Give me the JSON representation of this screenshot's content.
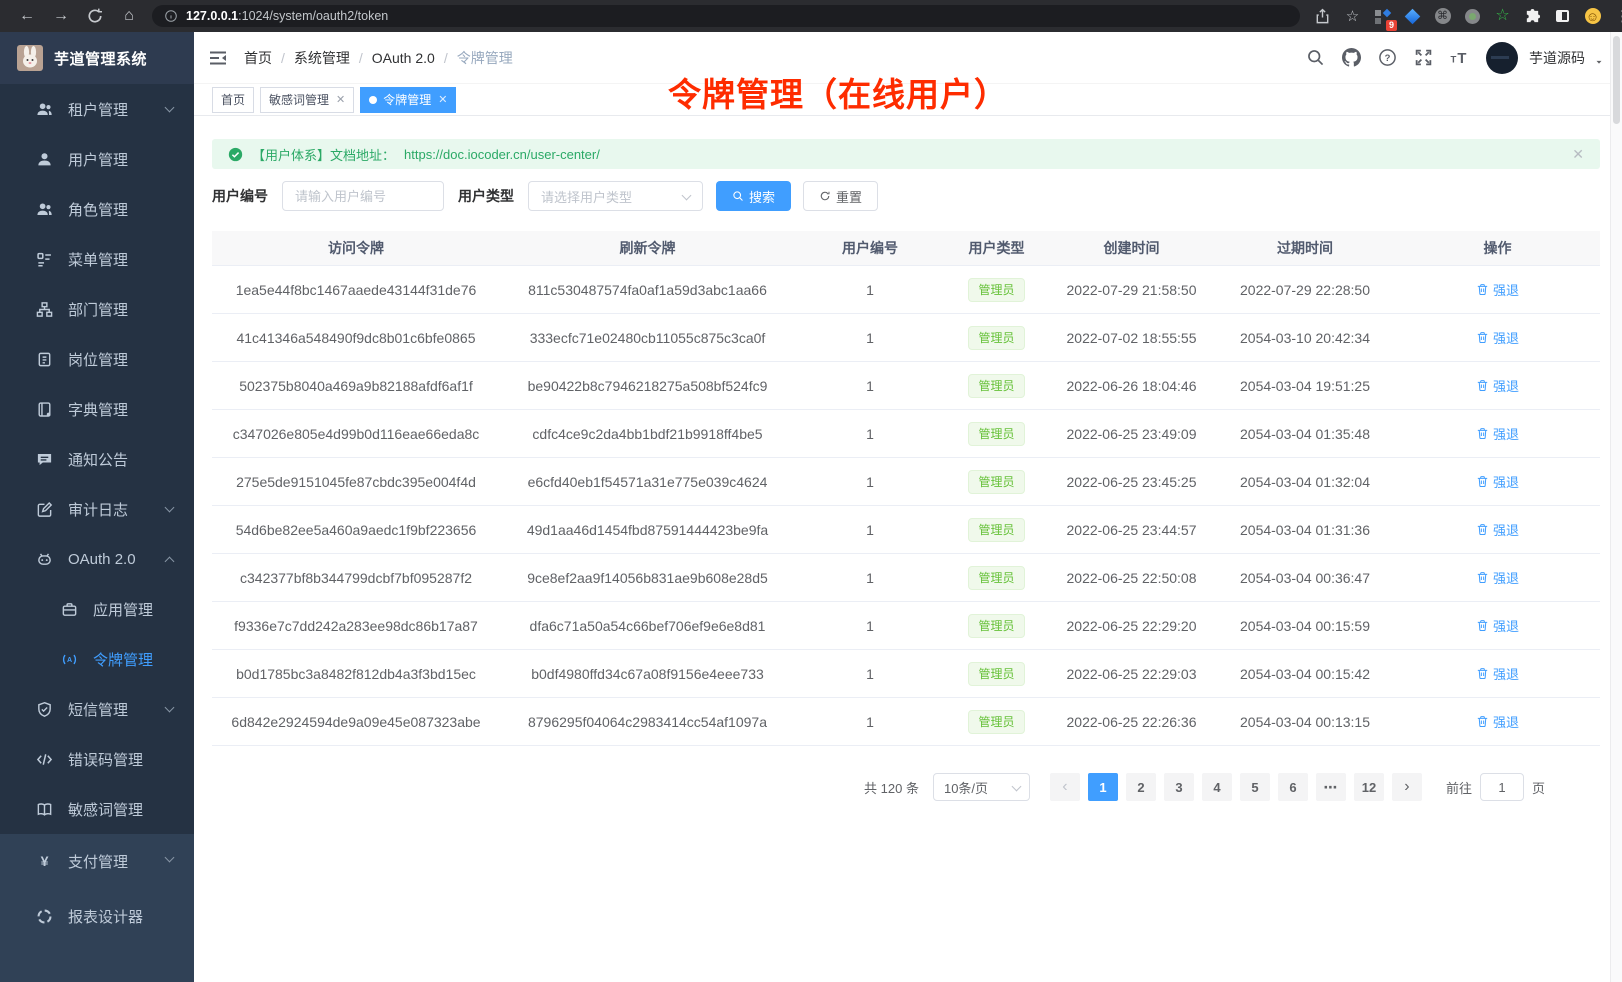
{
  "colors": {
    "primary": "#409eff",
    "success": "#67c23a",
    "alert_green": "#2ba966",
    "annotation_red": "#fe2c00",
    "sidebar_bg": "#304156",
    "sidebar_submenu_bg": "#253243",
    "active_tab_bg": "#409eff"
  },
  "browser": {
    "nav_icons": [
      "back-icon",
      "forward-icon",
      "reload-icon",
      "home-icon"
    ],
    "url_info_icon": "info-icon",
    "url_host": "127.0.0.1",
    "url_path": ":1024/system/oauth2/token",
    "toolbar_icons": [
      "share-icon",
      "bookmark-star-icon",
      "extensions-grid-icon",
      "gem-extension-icon",
      "command-extension-icon",
      "recorder-extension-icon",
      "star-extension-icon",
      "puzzle-extensions-icon",
      "side-panel-icon",
      "smiley-profile-icon",
      "kebab-menu-icon"
    ],
    "extension_badge": "9"
  },
  "app": {
    "logo_title": "芋道管理系统",
    "user_name": "芋道源码"
  },
  "header": {
    "breadcrumb": [
      "首页",
      "系统管理",
      "OAuth 2.0",
      "令牌管理"
    ],
    "right_icons": [
      "search-icon",
      "github-icon",
      "help-icon",
      "fullscreen-icon",
      "font-size-icon"
    ]
  },
  "tags": [
    {
      "label": "首页",
      "closable": false,
      "active": false
    },
    {
      "label": "敏感词管理",
      "closable": true,
      "active": false
    },
    {
      "label": "令牌管理",
      "closable": true,
      "active": true
    }
  ],
  "annotation": "令牌管理（在线用户）",
  "sidebar": {
    "sections": {
      "submenu": [
        {
          "label": "租户管理",
          "icon": "tenant-users-icon",
          "chevron": "down"
        },
        {
          "label": "用户管理",
          "icon": "user-icon"
        },
        {
          "label": "角色管理",
          "icon": "roles-icon"
        },
        {
          "label": "菜单管理",
          "icon": "menu-tree-icon"
        },
        {
          "label": "部门管理",
          "icon": "org-tree-icon"
        },
        {
          "label": "岗位管理",
          "icon": "post-badge-icon"
        },
        {
          "label": "字典管理",
          "icon": "dictionary-icon"
        },
        {
          "label": "通知公告",
          "icon": "notice-icon"
        },
        {
          "label": "审计日志",
          "icon": "audit-log-icon",
          "chevron": "down"
        },
        {
          "label": "OAuth 2.0",
          "icon": "oauth-robot-icon",
          "chevron": "up"
        },
        {
          "label": "应用管理",
          "icon": "app-briefcase-icon",
          "child": true
        },
        {
          "label": "令牌管理",
          "icon": "token-signal-icon",
          "child": true,
          "active": true
        },
        {
          "label": "短信管理",
          "icon": "sms-shield-icon",
          "chevron": "down"
        },
        {
          "label": "错误码管理",
          "icon": "errcode-icon"
        },
        {
          "label": "敏感词管理",
          "icon": "sensitive-word-icon"
        }
      ],
      "base": [
        {
          "label": "支付管理",
          "icon": "pay-yen-icon",
          "chevron": "down"
        },
        {
          "label": "报表设计器",
          "icon": "report-designer-icon"
        }
      ]
    }
  },
  "alert": {
    "text": "【用户体系】文档地址：",
    "link": "https://doc.iocoder.cn/user-center/"
  },
  "filters": {
    "user_id_label": "用户编号",
    "user_id_placeholder": "请输入用户编号",
    "user_type_label": "用户类型",
    "user_type_placeholder": "请选择用户类型",
    "search_label": "搜索",
    "reset_label": "重置"
  },
  "table": {
    "columns": [
      "访问令牌",
      "刷新令牌",
      "用户编号",
      "用户类型",
      "创建时间",
      "过期时间",
      "操作"
    ],
    "user_type_tag": "管理员",
    "action_label": "强退",
    "rows": [
      {
        "access": "1ea5e44f8bc1467aaede43144f31de76",
        "refresh": "811c530487574fa0af1a59d3abc1aa66",
        "user_id": "1",
        "created": "2022-07-29 21:58:50",
        "expires": "2022-07-29 22:28:50"
      },
      {
        "access": "41c41346a548490f9dc8b01c6bfe0865",
        "refresh": "333ecfc71e02480cb11055c875c3ca0f",
        "user_id": "1",
        "created": "2022-07-02 18:55:55",
        "expires": "2054-03-10 20:42:34"
      },
      {
        "access": "502375b8040a469a9b82188afdf6af1f",
        "refresh": "be90422b8c7946218275a508bf524fc9",
        "user_id": "1",
        "created": "2022-06-26 18:04:46",
        "expires": "2054-03-04 19:51:25"
      },
      {
        "access": "c347026e805e4d99b0d116eae66eda8c",
        "refresh": "cdfc4ce9c2da4bb1bdf21b9918ff4be5",
        "user_id": "1",
        "created": "2022-06-25 23:49:09",
        "expires": "2054-03-04 01:35:48"
      },
      {
        "access": "275e5de9151045fe87cbdc395e004f4d",
        "refresh": "e6cfd40eb1f54571a31e775e039c4624",
        "user_id": "1",
        "created": "2022-06-25 23:45:25",
        "expires": "2054-03-04 01:32:04"
      },
      {
        "access": "54d6be82ee5a460a9aedc1f9bf223656",
        "refresh": "49d1aa46d1454fbd87591444423be9fa",
        "user_id": "1",
        "created": "2022-06-25 23:44:57",
        "expires": "2054-03-04 01:31:36"
      },
      {
        "access": "c342377bf8b344799dcbf7bf095287f2",
        "refresh": "9ce8ef2aa9f14056b831ae9b608e28d5",
        "user_id": "1",
        "created": "2022-06-25 22:50:08",
        "expires": "2054-03-04 00:36:47"
      },
      {
        "access": "f9336e7c7dd242a283ee98dc86b17a87",
        "refresh": "dfa6c71a50a54c66bef706ef9e6e8d81",
        "user_id": "1",
        "created": "2022-06-25 22:29:20",
        "expires": "2054-03-04 00:15:59"
      },
      {
        "access": "b0d1785bc3a8482f812db4a3f3bd15ec",
        "refresh": "b0df4980ffd34c67a08f9156e4eee733",
        "user_id": "1",
        "created": "2022-06-25 22:29:03",
        "expires": "2054-03-04 00:15:42"
      },
      {
        "access": "6d842e2924594de9a09e45e087323abe",
        "refresh": "8796295f04064c2983414cc54af1097a",
        "user_id": "1",
        "created": "2022-06-25 22:26:36",
        "expires": "2054-03-04 00:13:15"
      }
    ]
  },
  "pagination": {
    "total": "共 120 条",
    "page_size": "10条/页",
    "pages": [
      "1",
      "2",
      "3",
      "4",
      "5",
      "6",
      "⋯",
      "12"
    ],
    "active_page": "1",
    "goto_label": "前往",
    "goto_value": "1",
    "goto_unit": "页"
  }
}
